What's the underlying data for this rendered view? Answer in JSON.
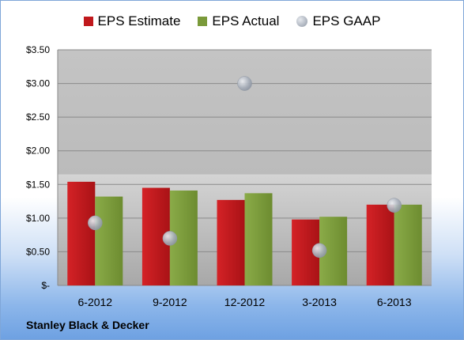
{
  "chart_data": {
    "type": "bar",
    "categories": [
      "6-2012",
      "9-2012",
      "12-2012",
      "3-2013",
      "6-2013"
    ],
    "series": [
      {
        "name": "EPS Estimate",
        "type": "bar",
        "color": "#c0181c",
        "values": [
          1.54,
          1.45,
          1.27,
          0.98,
          1.2
        ]
      },
      {
        "name": "EPS Actual",
        "type": "bar",
        "color": "#7a9a3a",
        "values": [
          1.32,
          1.41,
          1.37,
          1.02,
          1.2
        ]
      },
      {
        "name": "EPS GAAP",
        "type": "scatter",
        "color": "#a9b0bb",
        "values": [
          0.93,
          0.7,
          3.0,
          0.52,
          1.19
        ]
      }
    ],
    "y_ticks": [
      "$-",
      "$0.50",
      "$1.00",
      "$1.50",
      "$2.00",
      "$2.50",
      "$3.00",
      "$3.50"
    ],
    "ylim": [
      0,
      3.5
    ],
    "grid": true,
    "legend_position": "top"
  },
  "footer": {
    "company": "Stanley Black & Decker"
  }
}
